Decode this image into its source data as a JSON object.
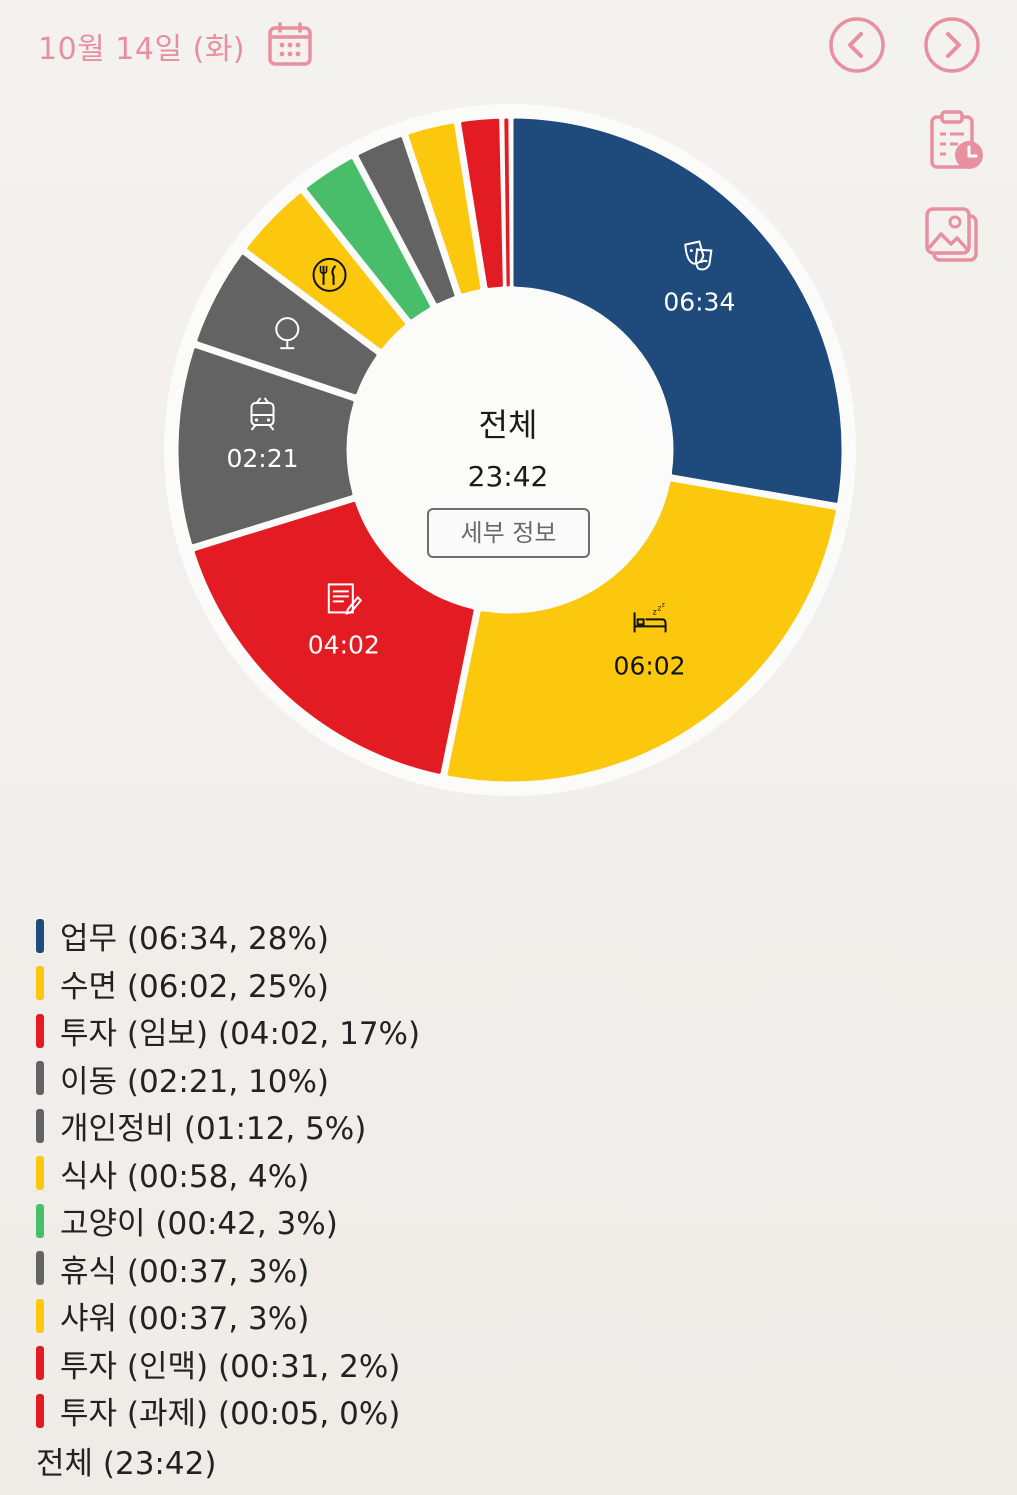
{
  "header": {
    "date": "10월 14일 (화)",
    "icons": {
      "calendar": "calendar-icon",
      "prev": "chevron-left-icon",
      "next": "chevron-right-icon",
      "clipboard": "clipboard-clock-icon",
      "image": "image-icon"
    },
    "accent_color": "#e88fa0"
  },
  "center": {
    "title": "전체",
    "total": "23:42",
    "detail_button": "세부 정보"
  },
  "chart_data": {
    "type": "pie",
    "variant": "donut",
    "title": "",
    "total_label": "전체 (23:42)",
    "slices": [
      {
        "label": "업무",
        "time": "06:34",
        "percent": 28,
        "minutes": 394,
        "color": "#1f4a7c",
        "icon": "theater-masks-icon",
        "show_time": "06:34"
      },
      {
        "label": "수면",
        "time": "06:02",
        "percent": 25,
        "minutes": 362,
        "color": "#fbc80e",
        "icon": "bed-icon",
        "show_time": "06:02"
      },
      {
        "label": "투자 (임보)",
        "time": "04:02",
        "percent": 17,
        "minutes": 242,
        "color": "#e31b23",
        "icon": "document-pen-icon",
        "show_time": "04:02"
      },
      {
        "label": "이동",
        "time": "02:21",
        "percent": 10,
        "minutes": 141,
        "color": "#636363",
        "icon": "train-icon",
        "show_time": "02:21"
      },
      {
        "label": "개인정비",
        "time": "01:12",
        "percent": 5,
        "minutes": 72,
        "color": "#636363",
        "icon": "mirror-icon",
        "show_time": ""
      },
      {
        "label": "식사",
        "time": "00:58",
        "percent": 4,
        "minutes": 58,
        "color": "#fbc80e",
        "icon": "utensils-icon",
        "show_time": ""
      },
      {
        "label": "고양이",
        "time": "00:42",
        "percent": 3,
        "minutes": 42,
        "color": "#48bd6a",
        "icon": "",
        "show_time": ""
      },
      {
        "label": "휴식",
        "time": "00:37",
        "percent": 3,
        "minutes": 37,
        "color": "#636363",
        "icon": "",
        "show_time": ""
      },
      {
        "label": "샤워",
        "time": "00:37",
        "percent": 3,
        "minutes": 37,
        "color": "#fbc80e",
        "icon": "",
        "show_time": ""
      },
      {
        "label": "투자 (인맥)",
        "time": "00:31",
        "percent": 2,
        "minutes": 31,
        "color": "#e31b23",
        "icon": "",
        "show_time": ""
      },
      {
        "label": "투자 (과제)",
        "time": "00:05",
        "percent": 0,
        "minutes": 5,
        "color": "#e31b23",
        "icon": "",
        "show_time": ""
      }
    ]
  }
}
